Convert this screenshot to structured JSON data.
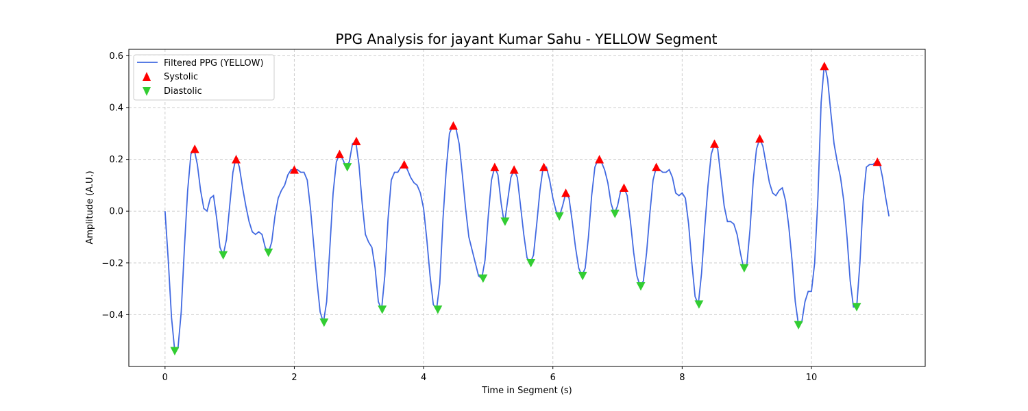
{
  "chart_data": {
    "type": "line",
    "title": "PPG Analysis for jayant Kumar Sahu - YELLOW Segment",
    "xlabel": "Time in Segment (s)",
    "ylabel": "Amplitude (A.U.)",
    "xlim": [
      -0.56,
      11.76
    ],
    "ylim": [
      -0.6,
      0.625
    ],
    "xticks": [
      0,
      2,
      4,
      6,
      8,
      10
    ],
    "yticks": [
      -0.4,
      -0.2,
      0.0,
      0.2,
      0.4,
      0.6
    ],
    "xtick_labels": [
      "0",
      "2",
      "4",
      "6",
      "8",
      "10"
    ],
    "ytick_labels": [
      "−0.4",
      "−0.2",
      "0.0",
      "0.2",
      "0.4",
      "0.6"
    ],
    "grid": true,
    "legend_position": "top-left",
    "series": [
      {
        "name": "Filtered PPG (YELLOW)",
        "kind": "line",
        "color": "#4169e1",
        "points": [
          [
            0.0,
            -0.0
          ],
          [
            0.05,
            -0.19
          ],
          [
            0.1,
            -0.41
          ],
          [
            0.15,
            -0.54
          ],
          [
            0.2,
            -0.53
          ],
          [
            0.25,
            -0.39
          ],
          [
            0.3,
            -0.14
          ],
          [
            0.35,
            0.08
          ],
          [
            0.4,
            0.22
          ],
          [
            0.45,
            0.24
          ],
          [
            0.5,
            0.18
          ],
          [
            0.55,
            0.08
          ],
          [
            0.6,
            0.01
          ],
          [
            0.65,
            0.0
          ],
          [
            0.7,
            0.05
          ],
          [
            0.75,
            0.06
          ],
          [
            0.8,
            -0.03
          ],
          [
            0.85,
            -0.14
          ],
          [
            0.9,
            -0.17
          ],
          [
            0.95,
            -0.11
          ],
          [
            1.0,
            0.02
          ],
          [
            1.05,
            0.15
          ],
          [
            1.1,
            0.21
          ],
          [
            1.15,
            0.17
          ],
          [
            1.2,
            0.09
          ],
          [
            1.25,
            0.02
          ],
          [
            1.3,
            -0.04
          ],
          [
            1.35,
            -0.08
          ],
          [
            1.4,
            -0.09
          ],
          [
            1.45,
            -0.08
          ],
          [
            1.5,
            -0.09
          ],
          [
            1.55,
            -0.14
          ],
          [
            1.6,
            -0.16
          ],
          [
            1.65,
            -0.12
          ],
          [
            1.7,
            -0.02
          ],
          [
            1.75,
            0.05
          ],
          [
            1.8,
            0.08
          ],
          [
            1.85,
            0.1
          ],
          [
            1.9,
            0.14
          ],
          [
            1.95,
            0.16
          ],
          [
            2.0,
            0.16
          ],
          [
            2.05,
            0.16
          ],
          [
            2.1,
            0.15
          ],
          [
            2.15,
            0.15
          ],
          [
            2.2,
            0.12
          ],
          [
            2.25,
            0.01
          ],
          [
            2.3,
            -0.13
          ],
          [
            2.35,
            -0.27
          ],
          [
            2.4,
            -0.39
          ],
          [
            2.45,
            -0.43
          ],
          [
            2.5,
            -0.35
          ],
          [
            2.55,
            -0.14
          ],
          [
            2.6,
            0.07
          ],
          [
            2.65,
            0.19
          ],
          [
            2.7,
            0.22
          ],
          [
            2.75,
            0.2
          ],
          [
            2.8,
            0.17
          ],
          [
            2.85,
            0.19
          ],
          [
            2.9,
            0.26
          ],
          [
            2.95,
            0.27
          ],
          [
            3.0,
            0.18
          ],
          [
            3.05,
            0.03
          ],
          [
            3.1,
            -0.09
          ],
          [
            3.15,
            -0.12
          ],
          [
            3.2,
            -0.14
          ],
          [
            3.25,
            -0.22
          ],
          [
            3.3,
            -0.35
          ],
          [
            3.35,
            -0.38
          ],
          [
            3.4,
            -0.25
          ],
          [
            3.45,
            -0.03
          ],
          [
            3.5,
            0.12
          ],
          [
            3.55,
            0.15
          ],
          [
            3.6,
            0.15
          ],
          [
            3.65,
            0.17
          ],
          [
            3.7,
            0.18
          ],
          [
            3.75,
            0.16
          ],
          [
            3.8,
            0.13
          ],
          [
            3.85,
            0.11
          ],
          [
            3.9,
            0.1
          ],
          [
            3.95,
            0.07
          ],
          [
            4.0,
            0.01
          ],
          [
            4.05,
            -0.11
          ],
          [
            4.1,
            -0.25
          ],
          [
            4.15,
            -0.36
          ],
          [
            4.2,
            -0.38
          ],
          [
            4.25,
            -0.28
          ],
          [
            4.3,
            -0.03
          ],
          [
            4.35,
            0.16
          ],
          [
            4.4,
            0.3
          ],
          [
            4.45,
            0.33
          ],
          [
            4.5,
            0.32
          ],
          [
            4.55,
            0.26
          ],
          [
            4.6,
            0.14
          ],
          [
            4.65,
            0.01
          ],
          [
            4.7,
            -0.1
          ],
          [
            4.75,
            -0.15
          ],
          [
            4.8,
            -0.2
          ],
          [
            4.85,
            -0.25
          ],
          [
            4.9,
            -0.26
          ],
          [
            4.95,
            -0.19
          ],
          [
            5.0,
            -0.02
          ],
          [
            5.05,
            0.12
          ],
          [
            5.1,
            0.17
          ],
          [
            5.15,
            0.14
          ],
          [
            5.2,
            0.03
          ],
          [
            5.25,
            -0.05
          ],
          [
            5.3,
            0.04
          ],
          [
            5.35,
            0.13
          ],
          [
            5.4,
            0.16
          ],
          [
            5.45,
            0.13
          ],
          [
            5.5,
            0.02
          ],
          [
            5.55,
            -0.09
          ],
          [
            5.6,
            -0.18
          ],
          [
            5.65,
            -0.2
          ],
          [
            5.7,
            -0.17
          ],
          [
            5.75,
            -0.05
          ],
          [
            5.8,
            0.08
          ],
          [
            5.85,
            0.17
          ],
          [
            5.9,
            0.17
          ],
          [
            5.95,
            0.12
          ],
          [
            6.0,
            0.05
          ],
          [
            6.05,
            0.0
          ],
          [
            6.1,
            -0.02
          ],
          [
            6.15,
            0.02
          ],
          [
            6.2,
            0.07
          ],
          [
            6.25,
            0.05
          ],
          [
            6.3,
            -0.04
          ],
          [
            6.35,
            -0.14
          ],
          [
            6.4,
            -0.22
          ],
          [
            6.45,
            -0.25
          ],
          [
            6.5,
            -0.22
          ],
          [
            6.55,
            -0.1
          ],
          [
            6.6,
            0.06
          ],
          [
            6.65,
            0.17
          ],
          [
            6.7,
            0.2
          ],
          [
            6.75,
            0.19
          ],
          [
            6.8,
            0.16
          ],
          [
            6.85,
            0.11
          ],
          [
            6.9,
            0.03
          ],
          [
            6.95,
            -0.01
          ],
          [
            7.0,
            0.02
          ],
          [
            7.05,
            0.08
          ],
          [
            7.1,
            0.09
          ],
          [
            7.15,
            0.06
          ],
          [
            7.2,
            -0.04
          ],
          [
            7.25,
            -0.16
          ],
          [
            7.3,
            -0.25
          ],
          [
            7.35,
            -0.29
          ],
          [
            7.4,
            -0.27
          ],
          [
            7.45,
            -0.16
          ],
          [
            7.5,
            -0.01
          ],
          [
            7.55,
            0.12
          ],
          [
            7.6,
            0.17
          ],
          [
            7.65,
            0.16
          ],
          [
            7.7,
            0.15
          ],
          [
            7.75,
            0.15
          ],
          [
            7.8,
            0.16
          ],
          [
            7.85,
            0.13
          ],
          [
            7.9,
            0.07
          ],
          [
            7.95,
            0.06
          ],
          [
            8.0,
            0.07
          ],
          [
            8.05,
            0.05
          ],
          [
            8.1,
            -0.05
          ],
          [
            8.15,
            -0.2
          ],
          [
            8.2,
            -0.33
          ],
          [
            8.25,
            -0.36
          ],
          [
            8.3,
            -0.24
          ],
          [
            8.35,
            -0.06
          ],
          [
            8.4,
            0.1
          ],
          [
            8.45,
            0.22
          ],
          [
            8.5,
            0.26
          ],
          [
            8.55,
            0.24
          ],
          [
            8.6,
            0.13
          ],
          [
            8.65,
            0.02
          ],
          [
            8.7,
            -0.04
          ],
          [
            8.75,
            -0.04
          ],
          [
            8.8,
            -0.05
          ],
          [
            8.85,
            -0.09
          ],
          [
            8.9,
            -0.16
          ],
          [
            8.95,
            -0.22
          ],
          [
            9.0,
            -0.21
          ],
          [
            9.05,
            -0.07
          ],
          [
            9.1,
            0.12
          ],
          [
            9.15,
            0.24
          ],
          [
            9.2,
            0.28
          ],
          [
            9.25,
            0.25
          ],
          [
            9.3,
            0.18
          ],
          [
            9.35,
            0.11
          ],
          [
            9.4,
            0.07
          ],
          [
            9.45,
            0.06
          ],
          [
            9.5,
            0.08
          ],
          [
            9.55,
            0.09
          ],
          [
            9.6,
            0.04
          ],
          [
            9.65,
            -0.06
          ],
          [
            9.7,
            -0.19
          ],
          [
            9.75,
            -0.35
          ],
          [
            9.8,
            -0.44
          ],
          [
            9.85,
            -0.43
          ],
          [
            9.9,
            -0.35
          ],
          [
            9.95,
            -0.31
          ],
          [
            10.0,
            -0.31
          ],
          [
            10.05,
            -0.2
          ],
          [
            10.1,
            0.05
          ],
          [
            10.15,
            0.42
          ],
          [
            10.2,
            0.57
          ],
          [
            10.25,
            0.51
          ],
          [
            10.3,
            0.38
          ],
          [
            10.35,
            0.26
          ],
          [
            10.4,
            0.19
          ],
          [
            10.45,
            0.13
          ],
          [
            10.5,
            0.04
          ],
          [
            10.55,
            -0.1
          ],
          [
            10.6,
            -0.27
          ],
          [
            10.65,
            -0.37
          ],
          [
            10.7,
            -0.37
          ],
          [
            10.75,
            -0.2
          ],
          [
            10.8,
            0.04
          ],
          [
            10.85,
            0.17
          ],
          [
            10.9,
            0.18
          ],
          [
            10.95,
            0.18
          ],
          [
            11.0,
            0.19
          ],
          [
            11.05,
            0.19
          ],
          [
            11.1,
            0.13
          ],
          [
            11.15,
            0.05
          ],
          [
            11.2,
            -0.02
          ]
        ]
      },
      {
        "name": "Systolic",
        "kind": "marker",
        "marker": "triangle-up",
        "color": "#ff0000",
        "points": [
          [
            0.46,
            0.24
          ],
          [
            1.1,
            0.2
          ],
          [
            2.0,
            0.16
          ],
          [
            2.7,
            0.22
          ],
          [
            2.96,
            0.27
          ],
          [
            3.7,
            0.18
          ],
          [
            4.46,
            0.33
          ],
          [
            5.1,
            0.17
          ],
          [
            5.4,
            0.16
          ],
          [
            5.86,
            0.17
          ],
          [
            6.2,
            0.07
          ],
          [
            6.72,
            0.2
          ],
          [
            7.1,
            0.09
          ],
          [
            7.6,
            0.17
          ],
          [
            8.5,
            0.26
          ],
          [
            9.2,
            0.28
          ],
          [
            10.2,
            0.56
          ],
          [
            11.02,
            0.19
          ]
        ]
      },
      {
        "name": "Diastolic",
        "kind": "marker",
        "marker": "triangle-down",
        "color": "#32cd32",
        "points": [
          [
            0.15,
            -0.54
          ],
          [
            0.9,
            -0.17
          ],
          [
            1.6,
            -0.16
          ],
          [
            2.46,
            -0.43
          ],
          [
            2.82,
            0.17
          ],
          [
            3.36,
            -0.38
          ],
          [
            4.22,
            -0.38
          ],
          [
            4.92,
            -0.26
          ],
          [
            5.26,
            -0.04
          ],
          [
            5.66,
            -0.2
          ],
          [
            6.1,
            -0.02
          ],
          [
            6.46,
            -0.25
          ],
          [
            6.96,
            -0.01
          ],
          [
            7.36,
            -0.29
          ],
          [
            8.26,
            -0.36
          ],
          [
            8.96,
            -0.22
          ],
          [
            9.8,
            -0.44
          ],
          [
            10.7,
            -0.37
          ]
        ]
      }
    ]
  }
}
